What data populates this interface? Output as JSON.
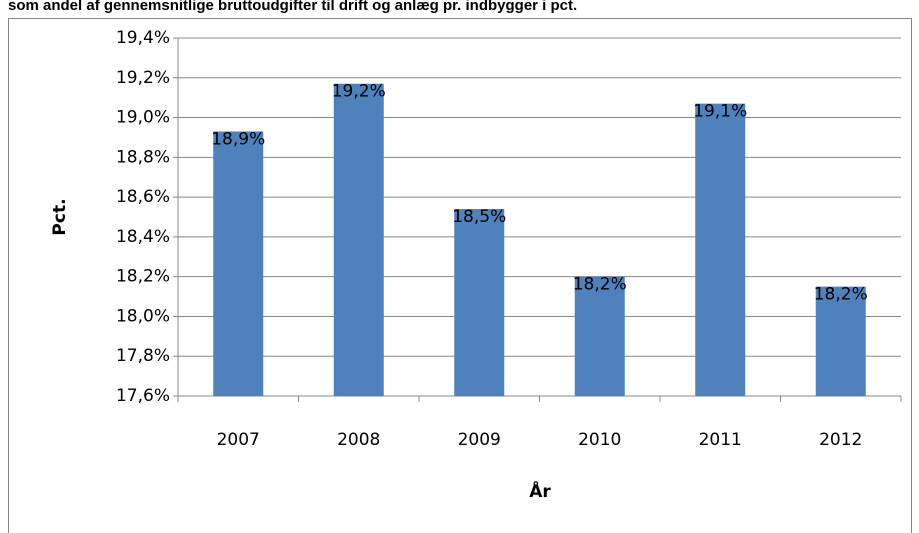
{
  "chart_data": {
    "type": "bar",
    "title": "som andel af gennemsnitlige bruttoudgifter til drift og anlæg pr. indbygger i pct.",
    "x_label": "År",
    "y_label": "Pct.",
    "categories": [
      "2007",
      "2008",
      "2009",
      "2010",
      "2011",
      "2012"
    ],
    "values": [
      18.93,
      19.17,
      18.54,
      18.2,
      19.07,
      18.15
    ],
    "value_labels": [
      "18,9%",
      "19,2%",
      "18,5%",
      "18,2%",
      "19,1%",
      "18,2%"
    ],
    "color": "#4f81bd",
    "ylim": [
      17.6,
      19.4
    ],
    "yticks": [
      {
        "value": 17.6,
        "label": "17,6%"
      },
      {
        "value": 17.8,
        "label": "17,8%"
      },
      {
        "value": 18.0,
        "label": "18,0%"
      },
      {
        "value": 18.2,
        "label": "18,2%"
      },
      {
        "value": 18.4,
        "label": "18,4%"
      },
      {
        "value": 18.6,
        "label": "18,6%"
      },
      {
        "value": 18.8,
        "label": "18,8%"
      },
      {
        "value": 19.0,
        "label": "19,0%"
      },
      {
        "value": 19.2,
        "label": "19,2%"
      },
      {
        "value": 19.4,
        "label": "19,4%"
      }
    ],
    "grid": true
  }
}
